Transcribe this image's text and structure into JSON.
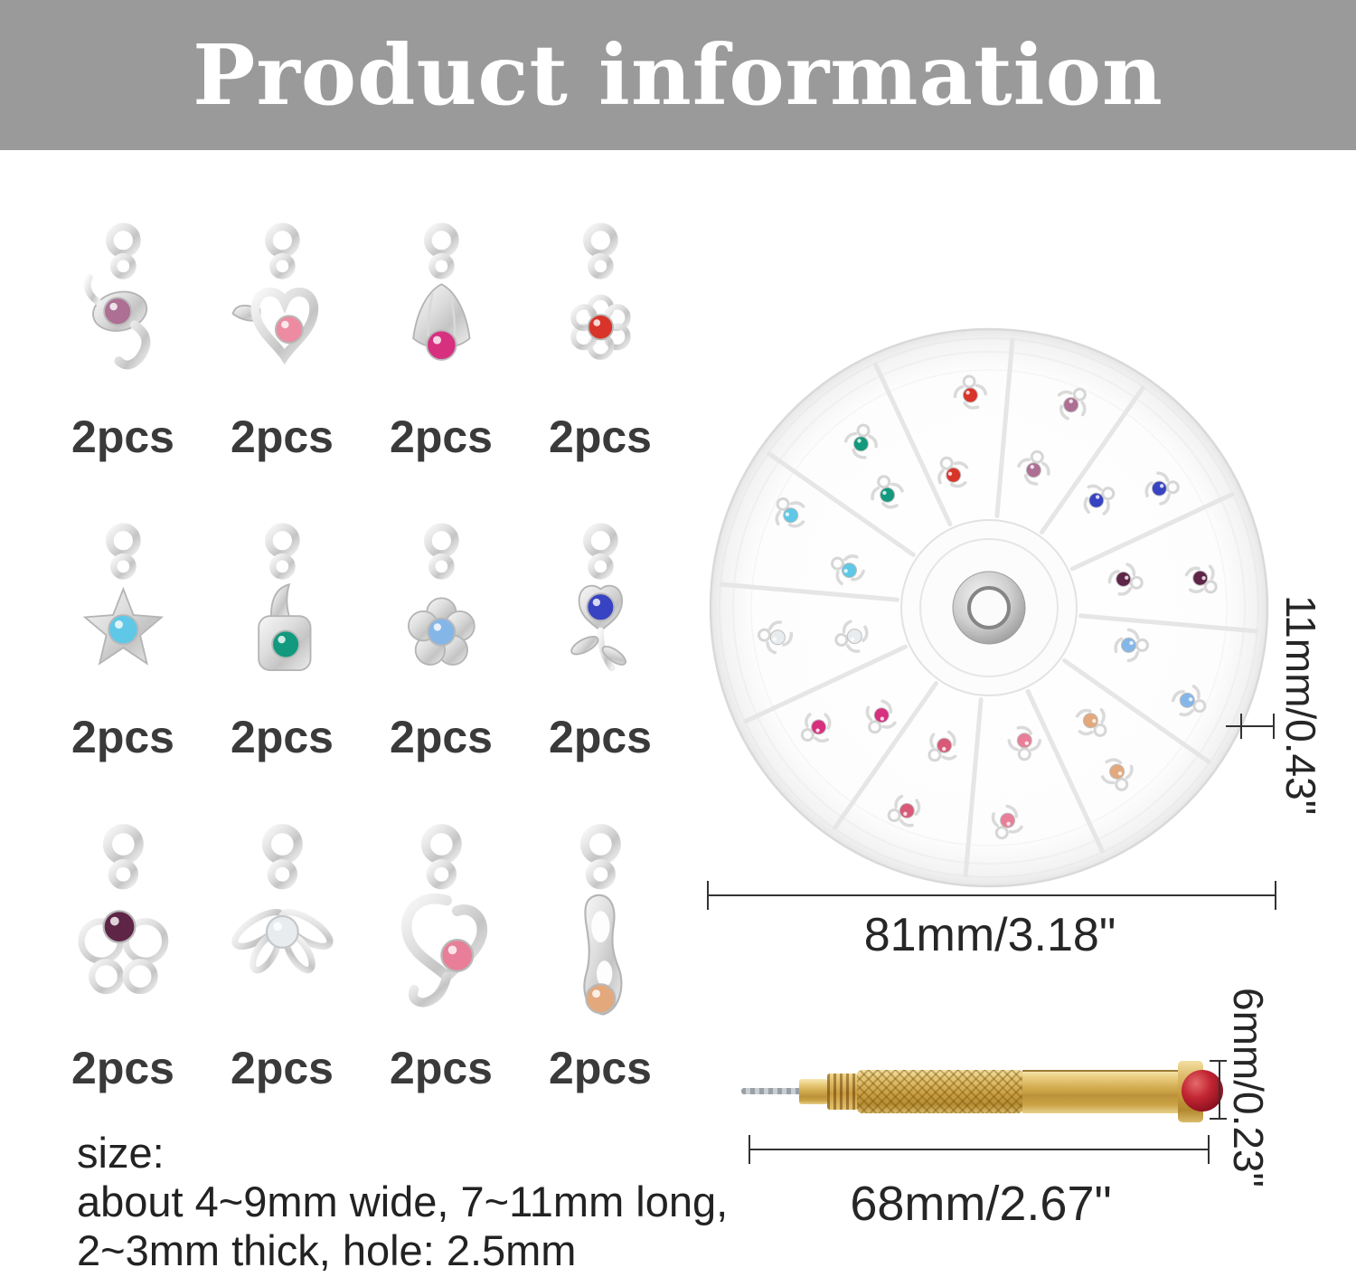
{
  "header": {
    "title": "Product information"
  },
  "charms": {
    "items": [
      {
        "name": "leaf-swirl-charm",
        "shape": "leaf-swirl",
        "gem": "#ad6f93",
        "label": "2pcs"
      },
      {
        "name": "winged-heart-charm",
        "shape": "winged-heart",
        "gem": "#ec8ba1",
        "label": "2pcs"
      },
      {
        "name": "bell-flower-charm",
        "shape": "bell-flower",
        "gem": "#d6307f",
        "label": "2pcs"
      },
      {
        "name": "filigree-flower-charm",
        "shape": "filigree-flower",
        "gem": "#d8342a",
        "label": "2pcs"
      },
      {
        "name": "star-charm",
        "shape": "star",
        "gem": "#5fc8e6",
        "label": "2pcs"
      },
      {
        "name": "handbag-charm",
        "shape": "handbag",
        "gem": "#12997e",
        "label": "2pcs"
      },
      {
        "name": "flower-charm",
        "shape": "flower",
        "gem": "#85b6e8",
        "label": "2pcs"
      },
      {
        "name": "tulip-charm",
        "shape": "tulip",
        "gem": "#3743c2",
        "label": "2pcs"
      },
      {
        "name": "butterfly-charm",
        "shape": "butterfly",
        "gem": "#5e2547",
        "label": "2pcs"
      },
      {
        "name": "dragonfly-charm",
        "shape": "dragonfly",
        "gem": "#e9ecee",
        "label": "2pcs"
      },
      {
        "name": "swirl-heart-charm",
        "shape": "swirl-heart",
        "gem": "#e87e97",
        "label": "2pcs"
      },
      {
        "name": "slipper-charm",
        "shape": "slipper",
        "gem": "#e3a87c",
        "label": "2pcs"
      }
    ]
  },
  "wheel": {
    "name": "charm storage wheel",
    "compartment_gems": [
      "#d8342a",
      "#ad6f93",
      "#3743c2",
      "#5e2547",
      "#85b6e8",
      "#e3a87c",
      "#e87e97",
      "#d85a78",
      "#d6307f",
      "#e9ecee",
      "#5fc8e6",
      "#12997e"
    ]
  },
  "dimensions": {
    "wheel_diameter": "81mm/3.18\"",
    "wheel_thickness": "11mm/0.43\"",
    "drill_length": "68mm/2.67\"",
    "drill_head_diameter": "6mm/0.23\""
  },
  "size_note": {
    "line1": "size:",
    "line2": "about 4~9mm wide, 7~11mm long,",
    "line3": "2~3mm thick, hole: 2.5mm"
  },
  "colors": {
    "header_bg": "#9a9a9a",
    "label_text": "#3a3a3a",
    "dimension_text": "#262626",
    "drill_gold": "#caa045",
    "drill_gem_red": "#c22633",
    "silver": "#d6d6d6"
  }
}
